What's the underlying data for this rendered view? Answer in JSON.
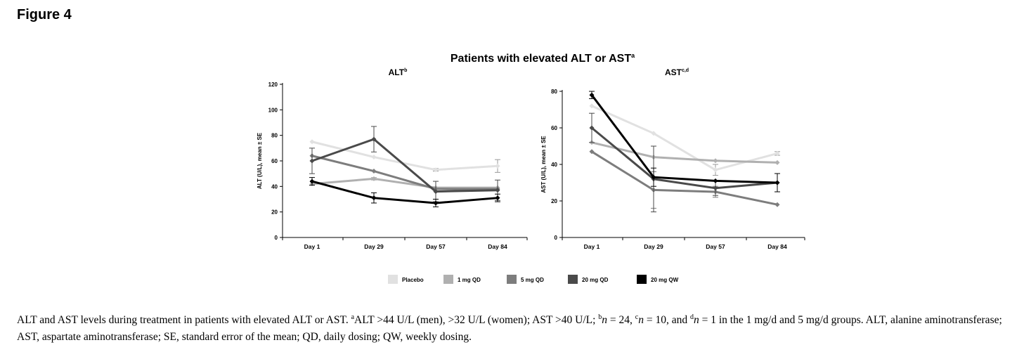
{
  "figure_label": "Figure 4",
  "chart_data": {
    "type": "line",
    "title": "Patients with elevated ALT or AST",
    "title_sup": "a",
    "legend": [
      {
        "name": "Placebo",
        "color": "#e1e1e1"
      },
      {
        "name": "1 mg QD",
        "color": "#b0b0b0"
      },
      {
        "name": "5 mg QD",
        "color": "#7d7d7d"
      },
      {
        "name": "20 mg QD",
        "color": "#4a4a4a"
      },
      {
        "name": "20 mg QW",
        "color": "#000000"
      }
    ],
    "panels": [
      {
        "title": "ALT",
        "title_sup": "b",
        "ylabel": "ALT (U/L), mean ± SE",
        "ylim": [
          0,
          120
        ],
        "yticks": [
          "0",
          "20",
          "40",
          "60",
          "80",
          "100",
          "120"
        ],
        "categories": [
          "Day 1",
          "Day 29",
          "Day 57",
          "Day 84"
        ],
        "series": [
          {
            "name": "Placebo",
            "values": [
              75,
              63,
              53,
              56
            ],
            "err": [
              null,
              null,
              1,
              5
            ]
          },
          {
            "name": "1 mg QD",
            "values": [
              42,
              46,
              39,
              39
            ],
            "err": [
              null,
              1,
              null,
              null
            ]
          },
          {
            "name": "5 mg QD",
            "values": [
              64,
              52,
              38,
              38
            ],
            "err": [
              null,
              null,
              null,
              null
            ]
          },
          {
            "name": "20 mg QD",
            "values": [
              60,
              77,
              36,
              37
            ],
            "err": [
              10,
              10,
              8,
              8
            ]
          },
          {
            "name": "20 mg QW",
            "values": [
              44,
              31,
              27,
              31
            ],
            "err": [
              3,
              4,
              3,
              3
            ]
          }
        ]
      },
      {
        "title": "AST",
        "title_sup": "c,d",
        "ylabel": "AST (U/L), mean ± SE",
        "ylim": [
          0,
          80
        ],
        "yticks": [
          "0",
          "20",
          "40",
          "60",
          "80"
        ],
        "categories": [
          "Day 1",
          "Day 29",
          "Day 57",
          "Day 84"
        ],
        "series": [
          {
            "name": "Placebo",
            "values": [
              72,
              57,
              37,
              46
            ],
            "err": [
              null,
              null,
              3,
              1
            ]
          },
          {
            "name": "1 mg QD",
            "values": [
              52,
              44,
              42,
              41
            ],
            "err": [
              null,
              null,
              null,
              null
            ]
          },
          {
            "name": "5 mg QD",
            "values": [
              47,
              26,
              25,
              18
            ],
            "err": [
              null,
              10,
              3,
              null
            ]
          },
          {
            "name": "20 mg QD",
            "values": [
              60,
              32,
              27,
              30
            ],
            "err": [
              8,
              18,
              4,
              5
            ]
          },
          {
            "name": "20 mg QW",
            "values": [
              78,
              33,
              31,
              30
            ],
            "err": [
              2,
              5,
              null,
              5
            ]
          }
        ]
      }
    ]
  },
  "caption": {
    "part1": "ALT and AST levels during treatment in patients with elevated ALT or AST. ",
    "sup_a": "a",
    "part2": "ALT >44 U/L (men), >32 U/L (women); AST >40 U/L; ",
    "sup_b": "b",
    "n_b": "n",
    "part3": " = 24, ",
    "sup_c": "c",
    "n_c": "n",
    "part4": " = 10, and ",
    "sup_d": "d",
    "n_d": "n",
    "part5": " = 1 in the 1 mg/d and 5 mg/d groups. ALT, alanine aminotransferase; AST, aspartate aminotransferase; SE, standard error of the mean; QD, daily dosing; QW, weekly dosing."
  }
}
